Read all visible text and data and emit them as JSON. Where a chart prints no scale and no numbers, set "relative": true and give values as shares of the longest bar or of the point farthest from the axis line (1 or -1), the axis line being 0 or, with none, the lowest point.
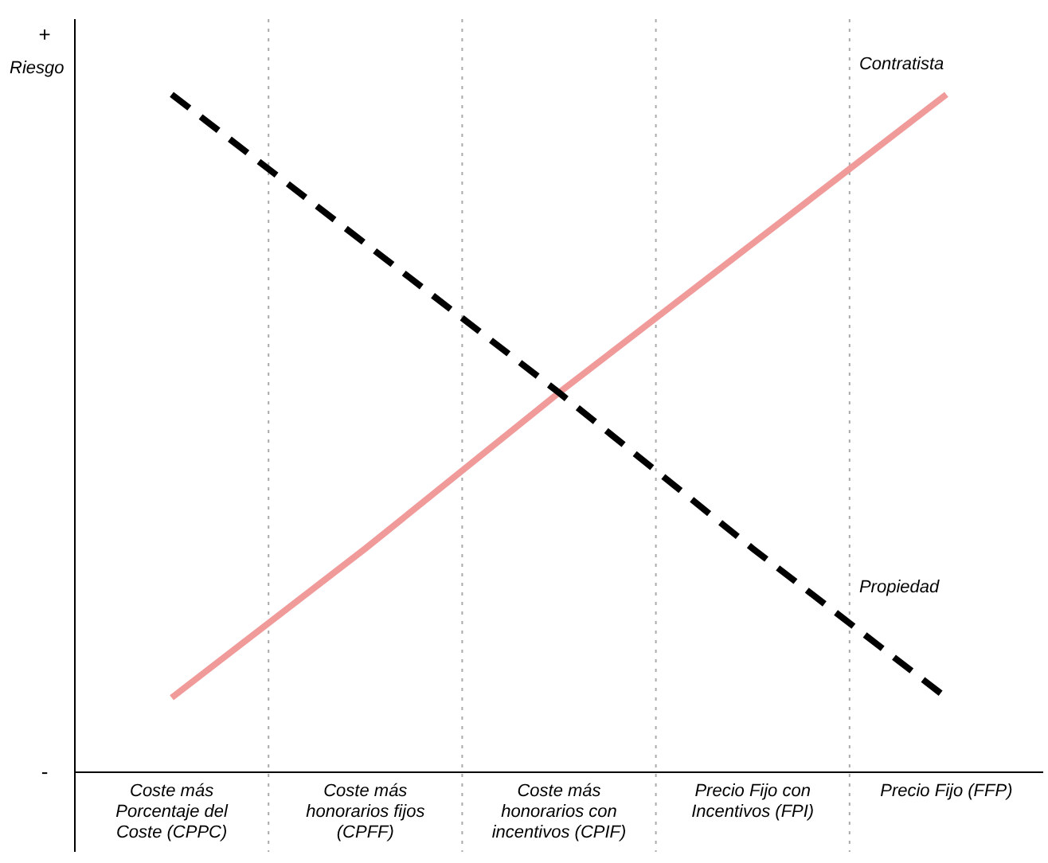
{
  "chart_data": {
    "type": "line",
    "relative": true,
    "ylabel": "Riesgo",
    "annotations": [
      "+",
      "-"
    ],
    "categories": [
      "Coste más Porcentaje del Coste (CPPC)",
      "Coste más honorarios fijos (CPFF)",
      "Coste más honorarios con incentivos (CPIF)",
      "Precio Fijo con Incentivos (FPI)",
      "Precio Fijo (FFP)"
    ],
    "series": [
      {
        "name": "Contratista",
        "color": "#f09a9a",
        "values": [
          0.11,
          0.33,
          0.56,
          0.78,
          1
        ],
        "line_style": "solid"
      },
      {
        "name": "Propiedad",
        "color": "#000000",
        "values": [
          1,
          0.78,
          0.56,
          0.33,
          0.11
        ],
        "line_style": "dashed"
      }
    ]
  }
}
